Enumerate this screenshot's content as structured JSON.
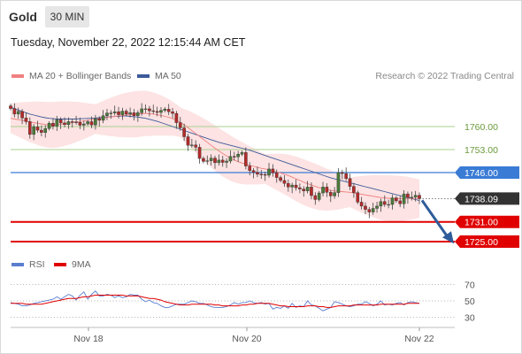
{
  "header": {
    "title": "Gold",
    "timeframe": "30 MIN",
    "timestamp": "Tuesday, November 22, 2022 12:15:44 AM CET"
  },
  "legend": {
    "ma20_label": "MA 20 + Bollinger Bands",
    "ma50_label": "MA 50",
    "rsi_label": "RSI",
    "rsi_ma_label": "9MA",
    "credit": "Research © 2022 Trading Central"
  },
  "colors": {
    "ma20": "#f08080",
    "ma50": "#3d5a99",
    "bollinger_fill": "#fde3e3",
    "support": "#e00000",
    "resistance_green": "#a8d08d",
    "resistance_blue": "#3a7bd5",
    "price_tag": "#333333",
    "rsi": "#5a7ecf",
    "rsi_ma": "#e00000",
    "arrow": "#2e5c9a"
  },
  "chart_data": {
    "type": "candlestick",
    "x_ticks": [
      "Nov 18",
      "Nov 20",
      "Nov 22"
    ],
    "price_levels": [
      {
        "label": "1760.00",
        "value": 1760.0,
        "kind": "resistance"
      },
      {
        "label": "1753.00",
        "value": 1753.0,
        "kind": "resistance"
      },
      {
        "label": "1746.00",
        "value": 1746.0,
        "kind": "pivot"
      },
      {
        "label": "1738.09",
        "value": 1738.09,
        "kind": "last-price"
      },
      {
        "label": "1731.00",
        "value": 1731.0,
        "kind": "support"
      },
      {
        "label": "1725.00",
        "value": 1725.0,
        "kind": "support"
      }
    ],
    "closes": [
      1765.5,
      1763.8,
      1764.6,
      1762.6,
      1761.5,
      1757.6,
      1759.9,
      1758.9,
      1758.2,
      1759.4,
      1761.0,
      1760.1,
      1762.1,
      1761.1,
      1760.6,
      1761.5,
      1761.4,
      1761.3,
      1760.4,
      1760.8,
      1761.5,
      1760.5,
      1762.4,
      1761.9,
      1763.3,
      1764.1,
      1764.1,
      1764.5,
      1763.6,
      1764.7,
      1763.8,
      1764.2,
      1763.3,
      1764.2,
      1765.4,
      1765.4,
      1764.8,
      1764.6,
      1764.3,
      1764.9,
      1765.3,
      1764.5,
      1764.0,
      1761.2,
      1759.6,
      1756.9,
      1754.3,
      1754.4,
      1753.7,
      1750.3,
      1749.4,
      1749.6,
      1750.4,
      1749.0,
      1749.8,
      1749.1,
      1749.5,
      1750.9,
      1750.8,
      1751.6,
      1752.1,
      1748.0,
      1746.6,
      1746.1,
      1745.5,
      1745.4,
      1745.2,
      1747.1,
      1745.9,
      1744.5,
      1743.6,
      1742.7,
      1741.6,
      1742.2,
      1741.4,
      1741.0,
      1740.4,
      1741.6,
      1739.0,
      1737.8,
      1739.8,
      1741.6,
      1740.0,
      1738.9,
      1739.9,
      1746.0,
      1745.7,
      1744.2,
      1741.8,
      1739.9,
      1737.0,
      1735.8,
      1734.8,
      1734.0,
      1735.1,
      1735.8,
      1737.2,
      1736.3,
      1736.3,
      1738.3,
      1737.4,
      1736.5,
      1739.5,
      1738.4,
      1738.5,
      1739.1,
      1738.09
    ],
    "ma20": [
      1762.5,
      1762.3,
      1762.1,
      1761.9,
      1761.6,
      1761.4,
      1761.2,
      1761.0,
      1760.8,
      1760.6,
      1760.5,
      1760.5,
      1760.6,
      1760.7,
      1760.9,
      1761.0,
      1761.2,
      1761.4,
      1761.6,
      1761.7,
      1761.9,
      1762.1,
      1762.3,
      1762.4,
      1762.6,
      1762.8,
      1762.9,
      1763.1,
      1763.2,
      1763.4,
      1763.5,
      1763.6,
      1763.7,
      1763.8,
      1763.9,
      1764.0,
      1763.9,
      1763.8,
      1763.6,
      1763.4,
      1763.1,
      1762.8,
      1762.4,
      1761.9,
      1761.3,
      1760.5,
      1759.7,
      1758.8,
      1757.9,
      1757.0,
      1756.1,
      1755.2,
      1754.3,
      1753.4,
      1752.6,
      1751.8,
      1751.1,
      1750.4,
      1749.8,
      1749.3,
      1748.9,
      1748.5,
      1748.2,
      1747.9,
      1747.6,
      1747.3,
      1747.1,
      1746.8,
      1746.5,
      1746.2,
      1745.9,
      1745.5,
      1745.1,
      1744.6,
      1744.1,
      1743.6,
      1743.1,
      1742.6,
      1742.2,
      1741.8,
      1741.4,
      1741.1,
      1740.8,
      1740.6,
      1740.4,
      1740.3,
      1740.2,
      1740.1,
      1740.0,
      1739.8,
      1739.6,
      1739.4,
      1739.2,
      1739.0,
      1738.8,
      1738.6,
      1738.4,
      1738.3,
      1738.2,
      1738.1,
      1738.1,
      1738.1,
      1738.1,
      1738.1,
      1738.1,
      1738.1,
      1738.1
    ],
    "ma50": [
      1766.0,
      1765.4,
      1765.0,
      1764.6,
      1764.2,
      1763.8,
      1763.5,
      1763.2,
      1762.9,
      1762.7,
      1762.5,
      1762.4,
      1762.3,
      1762.3,
      1762.3,
      1762.3,
      1762.3,
      1762.3,
      1762.4,
      1762.4,
      1762.5,
      1762.5,
      1762.6,
      1762.7,
      1762.8,
      1762.9,
      1763.0,
      1763.1,
      1763.1,
      1763.2,
      1763.2,
      1763.1,
      1763.0,
      1762.9,
      1762.7,
      1762.5,
      1762.2,
      1761.9,
      1761.6,
      1761.2,
      1760.8,
      1760.4,
      1760.0,
      1759.6,
      1759.2,
      1758.8,
      1758.4,
      1758.0,
      1757.6,
      1757.2,
      1756.8,
      1756.4,
      1756.0,
      1755.6,
      1755.2,
      1754.9,
      1754.6,
      1754.3,
      1754.0,
      1753.7,
      1753.4,
      1753.1,
      1752.8,
      1752.4,
      1752.0,
      1751.6,
      1751.2,
      1750.8,
      1750.4,
      1750.0,
      1749.6,
      1749.2,
      1748.8,
      1748.4,
      1748.0,
      1747.6,
      1747.2,
      1746.8,
      1746.4,
      1746.0,
      1745.6,
      1745.2,
      1744.8,
      1744.4,
      1744.1,
      1743.8,
      1743.5,
      1743.2,
      1742.9,
      1742.6,
      1742.3,
      1742.0,
      1741.7,
      1741.4,
      1741.1,
      1740.8,
      1740.5,
      1740.2,
      1739.9,
      1739.6,
      1739.3,
      1739.0,
      1738.7,
      1738.4,
      1738.1,
      1737.8,
      1737.5
    ],
    "rsi_ticks": [
      70,
      50,
      30
    ],
    "rsi": [
      48,
      47,
      46,
      44,
      44,
      45,
      47,
      48,
      49,
      50,
      51,
      52,
      55,
      52,
      55,
      58,
      56,
      51,
      57,
      61,
      52,
      58,
      62,
      56,
      56,
      58,
      57,
      54,
      56,
      54,
      55,
      58,
      57,
      57,
      52,
      49,
      51,
      48,
      47,
      44,
      42,
      42,
      44,
      46,
      46,
      46,
      48,
      50,
      49,
      47,
      47,
      45,
      43,
      42,
      42,
      42,
      43,
      45,
      48,
      46,
      48,
      48,
      50,
      48,
      47,
      48,
      46,
      47,
      40,
      42,
      41,
      44,
      41,
      47,
      42,
      44,
      43,
      50,
      45,
      44,
      41,
      38,
      40,
      42,
      49,
      48,
      46,
      44,
      43,
      44,
      46,
      46,
      49,
      47,
      44,
      46,
      50,
      45,
      46,
      45,
      47,
      48,
      45,
      48,
      49,
      48,
      47
    ],
    "rsi_ma": [
      47,
      47,
      47,
      47,
      46,
      46,
      46,
      46,
      46,
      47,
      48,
      49,
      50,
      51,
      52,
      53,
      53,
      53,
      54,
      55,
      55,
      56,
      57,
      57,
      57,
      57,
      57,
      57,
      57,
      57,
      56,
      56,
      56,
      56,
      55,
      54,
      53,
      53,
      52,
      51,
      49,
      48,
      47,
      46,
      45,
      45,
      45,
      46,
      46,
      46,
      46,
      46,
      46,
      45,
      45,
      44,
      44,
      44,
      44,
      44,
      45,
      45,
      46,
      46,
      47,
      47,
      47,
      47,
      46,
      45,
      44,
      44,
      43,
      43,
      43,
      43,
      43,
      44,
      44,
      44,
      43,
      43,
      42,
      42,
      43,
      44,
      44,
      44,
      44,
      45,
      45,
      45,
      45,
      45,
      45,
      45,
      46,
      46,
      46,
      46,
      46,
      46,
      46,
      47,
      47,
      47,
      47
    ]
  }
}
